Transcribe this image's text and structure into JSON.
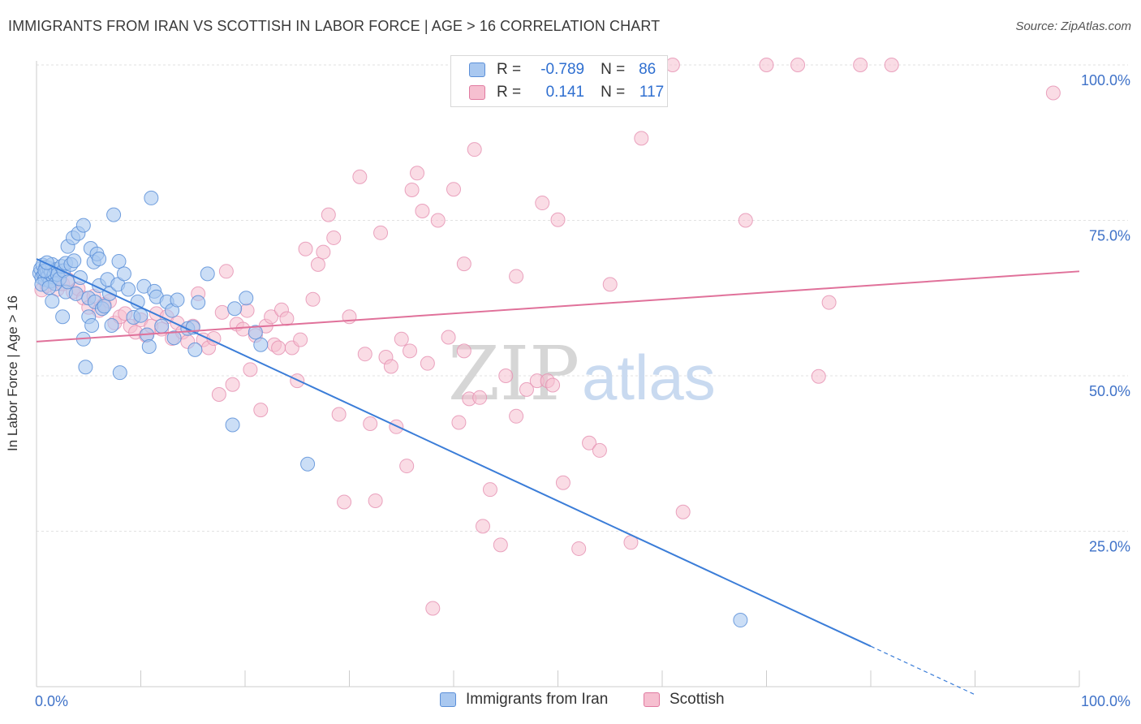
{
  "header": {
    "title": "IMMIGRANTS FROM IRAN VS SCOTTISH IN LABOR FORCE | AGE > 16 CORRELATION CHART",
    "source": "Source: ZipAtlas.com"
  },
  "legend": {
    "r_label": "R =",
    "n_label": "N =",
    "rows": [
      {
        "name": "Immigrants from Iran",
        "r": "-0.789",
        "n": "86",
        "fill": "#a9c8f0",
        "stroke": "#5b8fd8"
      },
      {
        "name": "Scottish",
        "r": "0.141",
        "n": "117",
        "fill": "#f6bfd0",
        "stroke": "#e07aa0"
      }
    ]
  },
  "watermark": {
    "part1": "ZIP",
    "part2": "atlas"
  },
  "chart_data": {
    "type": "scatter",
    "title": "IMMIGRANTS FROM IRAN VS SCOTTISH IN LABOR FORCE | AGE > 16 CORRELATION CHART",
    "xlabel": "",
    "ylabel": "In Labor Force | Age > 16",
    "xlim": [
      0,
      100
    ],
    "ylim": [
      0,
      100
    ],
    "x_tick_labels": [
      "0.0%",
      "100.0%"
    ],
    "y_tick_labels": [
      "25.0%",
      "50.0%",
      "75.0%",
      "100.0%"
    ],
    "y_ticks": [
      25,
      50,
      75,
      100
    ],
    "grid": true,
    "legend_position": "top-center",
    "colors": {
      "iran": "#3b7dd8",
      "scottish": "#e0719a",
      "axis_text": "#3f72c8",
      "grid": "#e2e2e2"
    },
    "series": [
      {
        "name": "Immigrants from Iran",
        "r": -0.789,
        "n": 86,
        "trend": {
          "x0": 0,
          "y0": 68.8,
          "x1": 80,
          "y1": 6.5,
          "dash_to_x": 90
        },
        "points": [
          [
            0.3,
            66.5
          ],
          [
            0.4,
            67.2
          ],
          [
            0.5,
            65.8
          ],
          [
            0.6,
            67.8
          ],
          [
            0.7,
            66.2
          ],
          [
            0.8,
            65.5
          ],
          [
            0.9,
            67.5
          ],
          [
            1.0,
            66.8
          ],
          [
            1.1,
            66.0
          ],
          [
            1.2,
            67.3
          ],
          [
            1.3,
            65.2
          ],
          [
            1.4,
            66.7
          ],
          [
            1.5,
            67.9
          ],
          [
            1.6,
            65.9
          ],
          [
            1.7,
            66.4
          ],
          [
            1.8,
            64.8
          ],
          [
            1.9,
            67.1
          ],
          [
            2.0,
            66.3
          ],
          [
            2.2,
            65.6
          ],
          [
            2.4,
            67.6
          ],
          [
            2.6,
            66.9
          ],
          [
            2.8,
            63.5
          ],
          [
            3.0,
            65.1
          ],
          [
            0.5,
            64.7
          ],
          [
            0.8,
            66.9
          ],
          [
            1.2,
            64.2
          ],
          [
            1.0,
            68.2
          ],
          [
            2.5,
            59.5
          ],
          [
            2.8,
            68.1
          ],
          [
            3.0,
            70.8
          ],
          [
            3.3,
            67.9
          ],
          [
            3.5,
            72.2
          ],
          [
            3.6,
            68.5
          ],
          [
            3.8,
            63.2
          ],
          [
            4.0,
            72.9
          ],
          [
            4.2,
            65.8
          ],
          [
            4.5,
            74.2
          ],
          [
            4.5,
            55.9
          ],
          [
            4.7,
            51.4
          ],
          [
            5.0,
            62.5
          ],
          [
            5.0,
            59.5
          ],
          [
            5.2,
            70.5
          ],
          [
            5.3,
            58.1
          ],
          [
            5.5,
            68.3
          ],
          [
            5.6,
            61.9
          ],
          [
            5.8,
            69.6
          ],
          [
            6.0,
            68.8
          ],
          [
            6.0,
            64.5
          ],
          [
            6.3,
            60.8
          ],
          [
            6.5,
            61.2
          ],
          [
            6.8,
            65.5
          ],
          [
            7.0,
            63.2
          ],
          [
            7.2,
            58.1
          ],
          [
            7.4,
            75.9
          ],
          [
            7.8,
            64.7
          ],
          [
            7.9,
            68.4
          ],
          [
            8.0,
            50.5
          ],
          [
            8.4,
            66.4
          ],
          [
            8.8,
            63.9
          ],
          [
            9.3,
            59.4
          ],
          [
            9.7,
            61.9
          ],
          [
            10.0,
            59.7
          ],
          [
            10.3,
            64.4
          ],
          [
            10.6,
            56.6
          ],
          [
            10.8,
            54.7
          ],
          [
            11.0,
            78.6
          ],
          [
            11.3,
            63.6
          ],
          [
            11.5,
            62.7
          ],
          [
            12.0,
            58.0
          ],
          [
            12.5,
            61.9
          ],
          [
            13.0,
            60.5
          ],
          [
            13.2,
            56.1
          ],
          [
            13.5,
            62.2
          ],
          [
            14.5,
            57.6
          ],
          [
            15.0,
            57.8
          ],
          [
            15.2,
            54.2
          ],
          [
            15.5,
            61.8
          ],
          [
            16.4,
            66.4
          ],
          [
            18.8,
            42.1
          ],
          [
            19.0,
            60.8
          ],
          [
            20.1,
            62.5
          ],
          [
            21.0,
            57.0
          ],
          [
            21.5,
            55.0
          ],
          [
            26.0,
            35.8
          ],
          [
            67.5,
            10.7
          ],
          [
            1.5,
            62.0
          ]
        ]
      },
      {
        "name": "Scottish",
        "r": 0.141,
        "n": 117,
        "trend": {
          "x0": 0,
          "y0": 55.5,
          "x1": 100,
          "y1": 66.8
        },
        "points": [
          [
            0.5,
            63.8
          ],
          [
            1.0,
            64.5
          ],
          [
            1.5,
            65.2
          ],
          [
            2.0,
            63.9
          ],
          [
            2.5,
            64.8
          ],
          [
            3.0,
            65.5
          ],
          [
            3.5,
            63.5
          ],
          [
            4.0,
            64.0
          ],
          [
            4.5,
            62.5
          ],
          [
            5.0,
            61.0
          ],
          [
            5.5,
            62.8
          ],
          [
            6.0,
            60.5
          ],
          [
            6.5,
            61.5
          ],
          [
            7.0,
            62.0
          ],
          [
            7.5,
            58.5
          ],
          [
            8.0,
            59.5
          ],
          [
            8.5,
            60.0
          ],
          [
            9.0,
            58.0
          ],
          [
            9.5,
            57.0
          ],
          [
            10.0,
            59.0
          ],
          [
            10.5,
            56.5
          ],
          [
            11.0,
            58.0
          ],
          [
            11.5,
            60.0
          ],
          [
            12.0,
            57.5
          ],
          [
            12.5,
            59.5
          ],
          [
            13.0,
            56.0
          ],
          [
            13.5,
            58.5
          ],
          [
            14.0,
            57.0
          ],
          [
            14.5,
            55.5
          ],
          [
            15.0,
            58.0
          ],
          [
            15.5,
            63.2
          ],
          [
            16.0,
            55.8
          ],
          [
            16.5,
            54.5
          ],
          [
            17.0,
            56.0
          ],
          [
            17.5,
            47.0
          ],
          [
            17.8,
            60.2
          ],
          [
            18.2,
            66.8
          ],
          [
            18.8,
            48.6
          ],
          [
            19.2,
            58.3
          ],
          [
            19.8,
            57.5
          ],
          [
            20.2,
            60.5
          ],
          [
            20.5,
            51.0
          ],
          [
            21.0,
            56.5
          ],
          [
            21.5,
            44.5
          ],
          [
            22.0,
            58.0
          ],
          [
            22.5,
            59.5
          ],
          [
            22.8,
            55.0
          ],
          [
            23.2,
            54.5
          ],
          [
            23.5,
            60.6
          ],
          [
            24.0,
            59.2
          ],
          [
            24.5,
            54.5
          ],
          [
            25.0,
            49.2
          ],
          [
            25.3,
            55.8
          ],
          [
            25.8,
            70.4
          ],
          [
            26.5,
            62.3
          ],
          [
            27.0,
            67.9
          ],
          [
            27.5,
            69.9
          ],
          [
            28.0,
            75.9
          ],
          [
            28.5,
            72.2
          ],
          [
            29.0,
            43.8
          ],
          [
            29.5,
            29.7
          ],
          [
            30.0,
            59.5
          ],
          [
            31.0,
            82.0
          ],
          [
            31.5,
            53.5
          ],
          [
            32.0,
            42.3
          ],
          [
            32.5,
            29.9
          ],
          [
            33.0,
            73.0
          ],
          [
            33.5,
            53.0
          ],
          [
            34.0,
            51.5
          ],
          [
            34.5,
            41.8
          ],
          [
            35.0,
            55.9
          ],
          [
            35.5,
            35.5
          ],
          [
            35.8,
            54.0
          ],
          [
            36.0,
            79.9
          ],
          [
            36.5,
            82.6
          ],
          [
            37.0,
            76.5
          ],
          [
            37.5,
            52.0
          ],
          [
            38.0,
            12.6
          ],
          [
            38.5,
            75.0
          ],
          [
            39.5,
            56.2
          ],
          [
            40.5,
            42.5
          ],
          [
            41.0,
            54.0
          ],
          [
            41.5,
            46.3
          ],
          [
            42.0,
            86.4
          ],
          [
            42.5,
            46.5
          ],
          [
            42.8,
            25.8
          ],
          [
            40.0,
            80.0
          ],
          [
            41.0,
            68.0
          ],
          [
            43.5,
            31.7
          ],
          [
            44.5,
            22.8
          ],
          [
            45.0,
            50.0
          ],
          [
            46.0,
            43.5
          ],
          [
            47.0,
            47.8
          ],
          [
            48.0,
            49.2
          ],
          [
            48.5,
            77.8
          ],
          [
            49.0,
            49.2
          ],
          [
            49.5,
            48.5
          ],
          [
            50.0,
            75.1
          ],
          [
            50.5,
            32.8
          ],
          [
            52.0,
            22.2
          ],
          [
            53.0,
            39.2
          ],
          [
            54.0,
            38.0
          ],
          [
            55.0,
            64.7
          ],
          [
            57.0,
            23.2
          ],
          [
            58.0,
            88.2
          ],
          [
            62.0,
            28.1
          ],
          [
            68.0,
            75.0
          ],
          [
            70.0,
            100.0
          ],
          [
            73.0,
            100.0
          ],
          [
            75.0,
            49.9
          ],
          [
            76.0,
            61.8
          ],
          [
            79.0,
            100.0
          ],
          [
            82.0,
            100.0
          ],
          [
            97.5,
            95.5
          ],
          [
            61.0,
            100.0
          ],
          [
            49.0,
            100.0
          ],
          [
            46.0,
            66.0
          ]
        ]
      }
    ]
  }
}
